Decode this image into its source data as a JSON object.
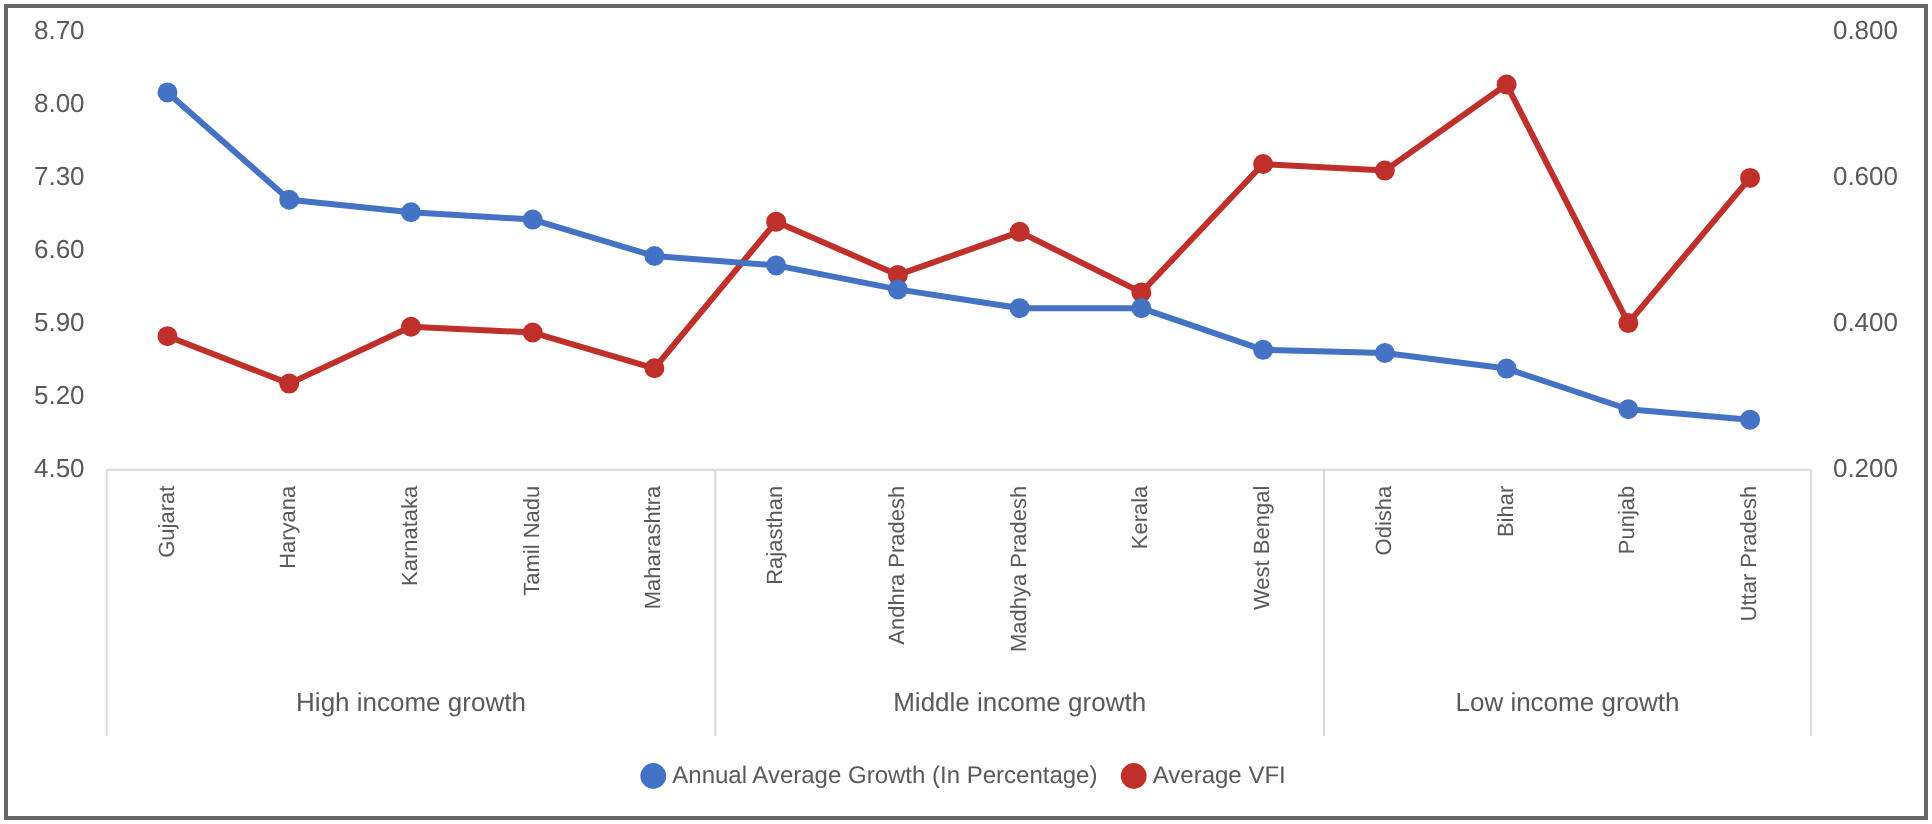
{
  "chart_data": {
    "type": "line",
    "categories": [
      "Gujarat",
      "Haryana",
      "Karnataka",
      "Tamil Nadu",
      "Maharashtra",
      "Rajasthan",
      "Andhra Pradesh",
      "Madhya Pradesh",
      "Kerala",
      "West Bengal",
      "Odisha",
      "Bihar",
      "Punjab",
      "Uttar Pradesh"
    ],
    "series": [
      {
        "name": "Annual Average Growth (In Percentage)",
        "color": "#4472c4",
        "values": [
          8.12,
          7.09,
          6.97,
          6.9,
          6.55,
          6.46,
          6.23,
          6.05,
          6.05,
          5.65,
          5.62,
          5.47,
          5.08,
          4.98
        ]
      },
      {
        "name": "Average VFI",
        "color": "#c0302b",
        "axis": "y2",
        "values": [
          0.383,
          0.318,
          0.396,
          0.388,
          0.339,
          0.54,
          0.467,
          0.526,
          0.443,
          0.619,
          0.61,
          0.728,
          0.401,
          0.6
        ]
      }
    ],
    "ylim": [
      4.5,
      8.7
    ],
    "yticks": [
      {
        "value": 4.5,
        "label": "4.50"
      },
      {
        "value": 5.2,
        "label": "5.20"
      },
      {
        "value": 5.9,
        "label": "5.90"
      },
      {
        "value": 6.6,
        "label": "6.60"
      },
      {
        "value": 7.3,
        "label": "7.30"
      },
      {
        "value": 8.0,
        "label": "8.00"
      },
      {
        "value": 8.7,
        "label": "8.70"
      }
    ],
    "y2lim": [
      0.2,
      0.8
    ],
    "y2ticks": [
      {
        "value": 0.2,
        "label": "0.200"
      },
      {
        "value": 0.4,
        "label": "0.400"
      },
      {
        "value": 0.6,
        "label": "0.600"
      },
      {
        "value": 0.8,
        "label": "0.800"
      }
    ],
    "annotations": [
      "High income growth",
      "Middle income growth",
      "Low income growth"
    ],
    "grid": false,
    "legend": "bottom",
    "marker": "circle",
    "line_style": "solid"
  }
}
